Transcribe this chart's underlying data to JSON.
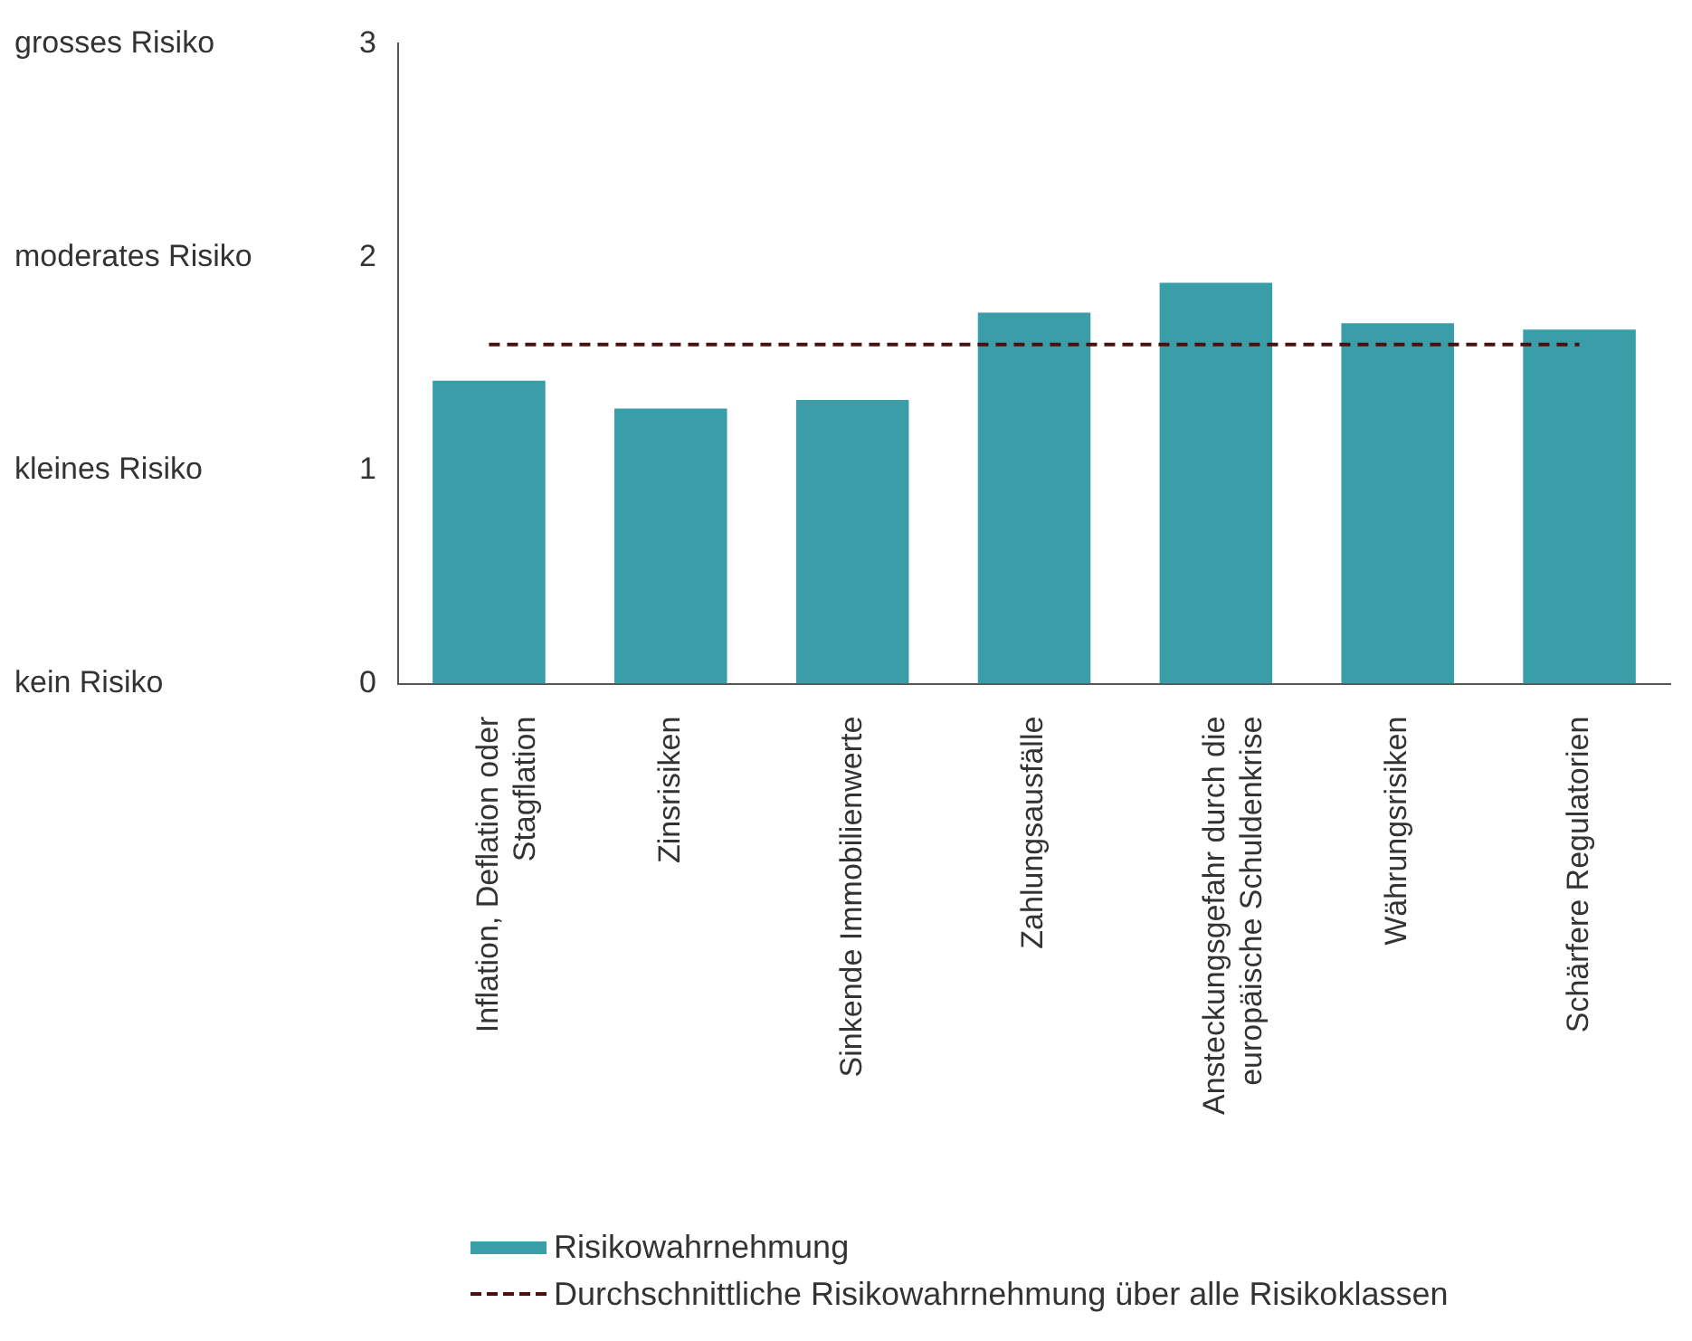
{
  "chart_data": {
    "type": "bar",
    "categories": [
      "Inflation, Deflation oder\nStagflation",
      "Zinsrisiken",
      "Sinkende Immobilienwerte",
      "Zahlungsausfälle",
      "Ansteckungsgefahr durch die\neuropäische Schuldenkrise",
      "Währungsrisiken",
      "Schärfere Regulatorien"
    ],
    "series": [
      {
        "name": "Risikowahrnehmung",
        "color": "#3a9ea8",
        "values": [
          1.42,
          1.29,
          1.33,
          1.74,
          1.88,
          1.69,
          1.66
        ]
      }
    ],
    "ylim": [
      0,
      3
    ],
    "yticks": [
      0,
      1,
      2,
      3
    ],
    "annotations": [
      "kein Risiko",
      "kleines Risiko",
      "moderates Risiko",
      "grosses Risiko"
    ],
    "ref_lines": [
      {
        "axis": "y",
        "value": 1.59,
        "label": "Durchschnittliche Risikowahrnehmung über alle Risikoklassen",
        "color": "#4a1010",
        "line_style": "dashed"
      }
    ],
    "grid": false,
    "legend": "bottom"
  }
}
